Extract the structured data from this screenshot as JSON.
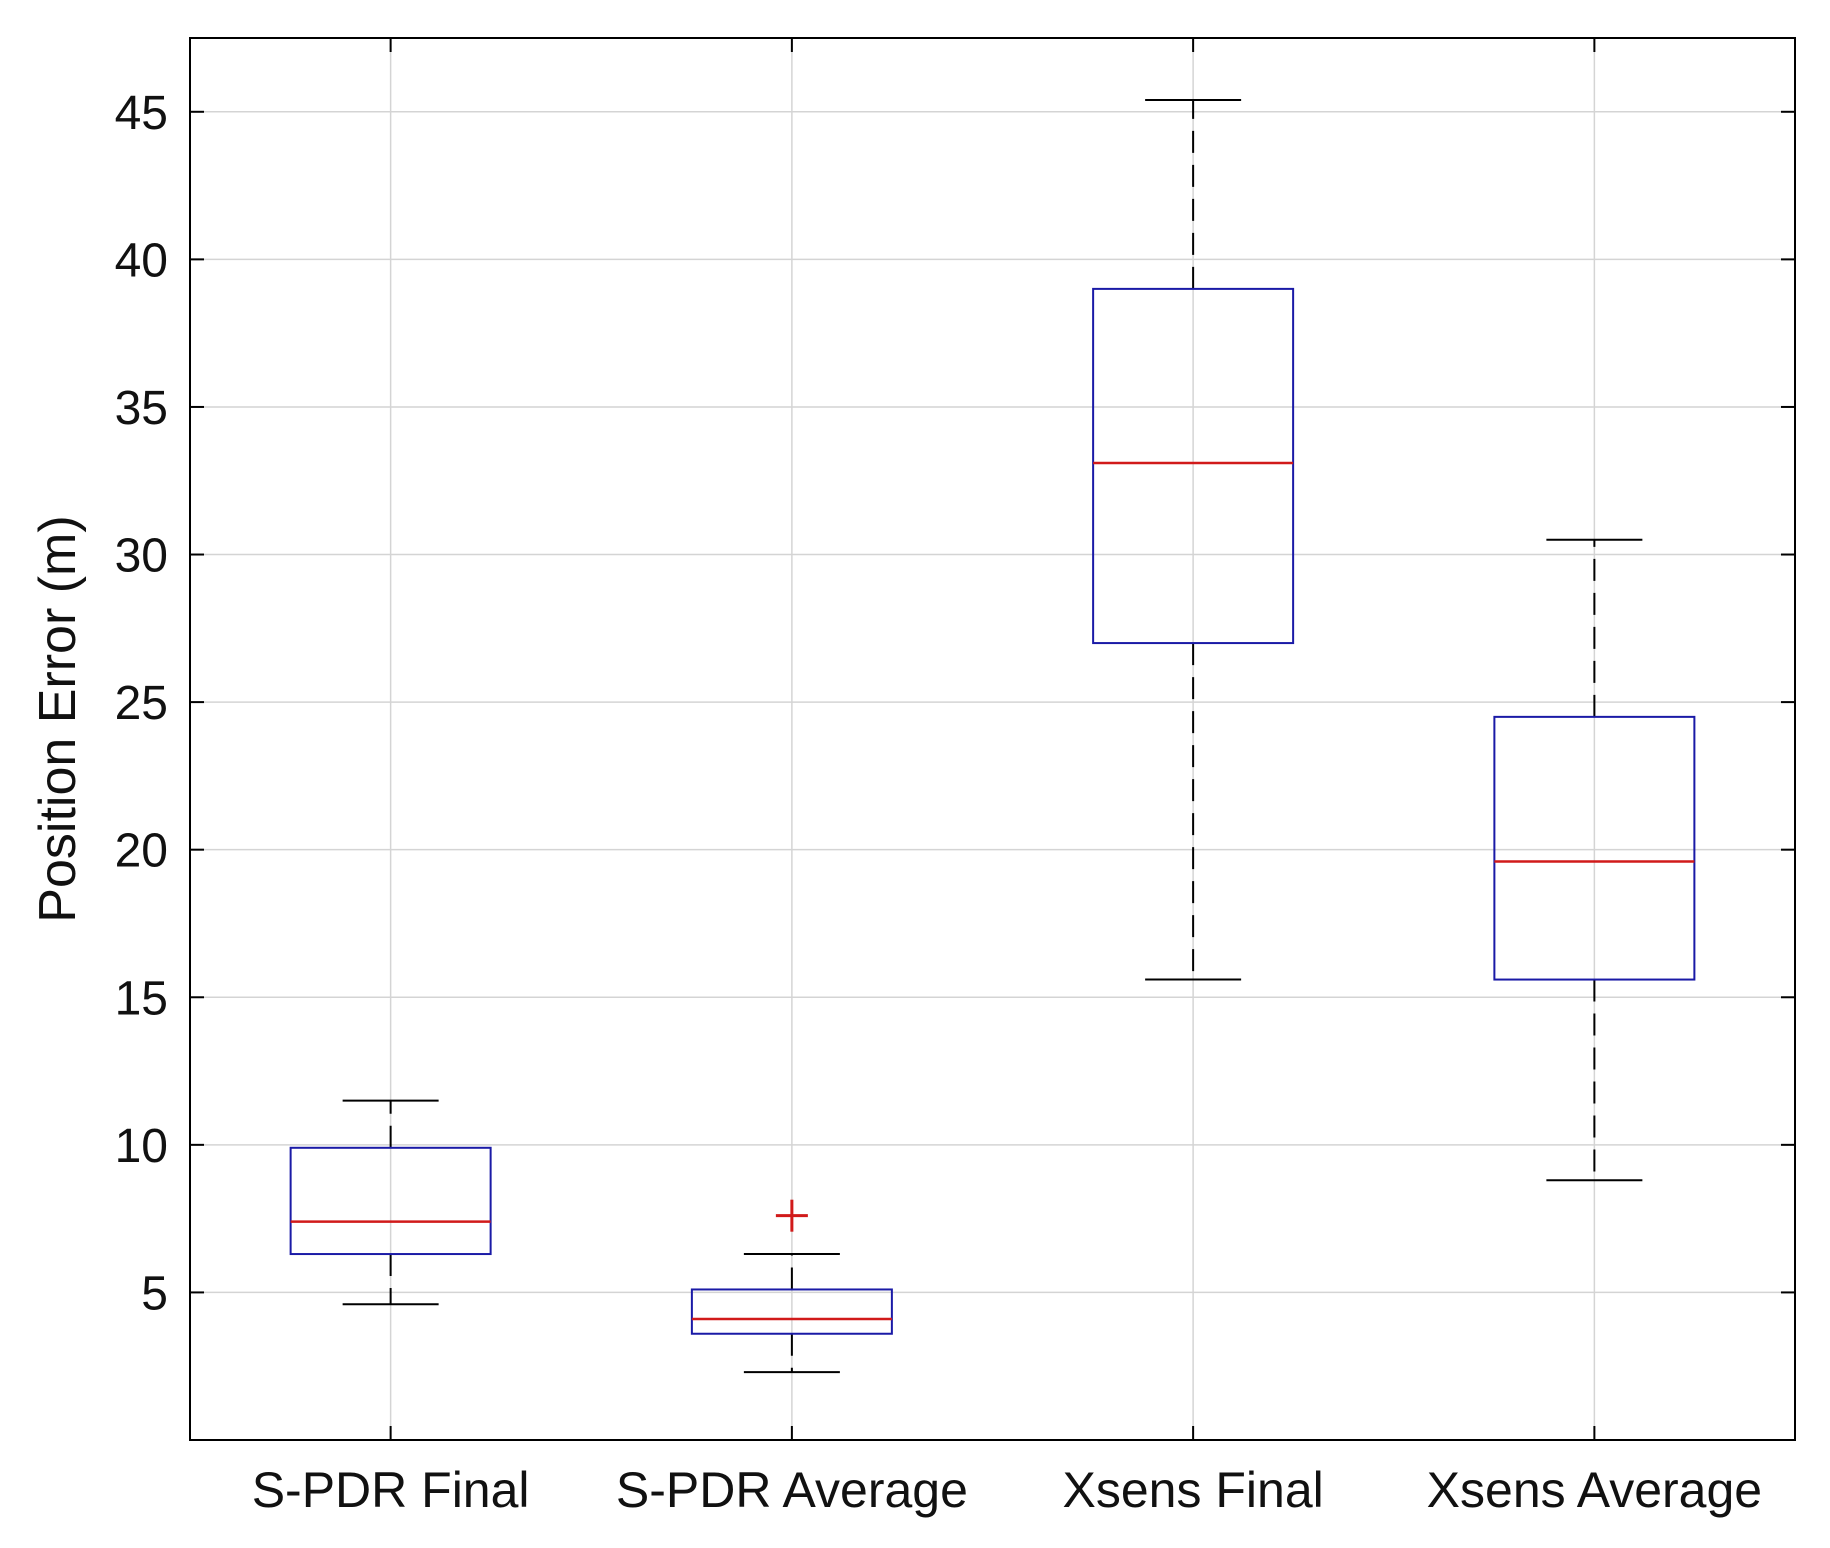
{
  "chart_data": {
    "type": "boxplot",
    "title": "",
    "xlabel": "",
    "ylabel": "Position Error (m)",
    "ylim": [
      0,
      47.5
    ],
    "yticks": [
      5,
      10,
      15,
      20,
      25,
      30,
      35,
      40,
      45
    ],
    "grid": true,
    "categories": [
      "S-PDR Final",
      "S-PDR Average",
      "Xsens Final",
      "Xsens Average"
    ],
    "series": [
      {
        "name": "S-PDR Final",
        "whisker_low": 4.6,
        "q1": 6.3,
        "median": 7.4,
        "q3": 9.9,
        "whisker_high": 11.5,
        "outliers": []
      },
      {
        "name": "S-PDR Average",
        "whisker_low": 2.3,
        "q1": 3.6,
        "median": 4.1,
        "q3": 5.1,
        "whisker_high": 6.3,
        "outliers": [
          7.6
        ]
      },
      {
        "name": "Xsens Final",
        "whisker_low": 15.6,
        "q1": 27.0,
        "median": 33.1,
        "q3": 39.0,
        "whisker_high": 45.4,
        "outliers": []
      },
      {
        "name": "Xsens Average",
        "whisker_low": 8.8,
        "q1": 15.6,
        "median": 19.6,
        "q3": 24.5,
        "whisker_high": 30.5,
        "outliers": []
      }
    ],
    "colors": {
      "box": "#1a1aa6",
      "median": "#d11a1a",
      "outlier": "#d11a1a",
      "whisker": "#000000",
      "grid": "#d4d4d4",
      "axis": "#000000"
    }
  }
}
